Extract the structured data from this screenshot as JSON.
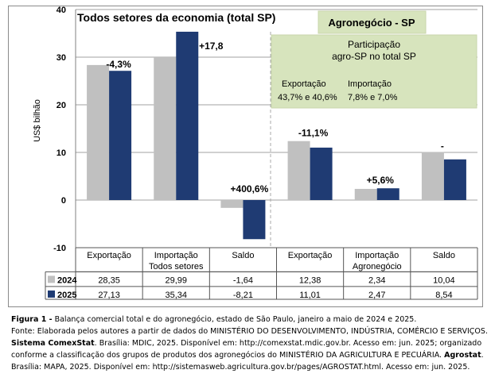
{
  "chart_data": {
    "type": "bar",
    "title": "Todos setores da economia (total SP)",
    "ylabel": "US$ bilhão",
    "ylim": [
      -10,
      40
    ],
    "yticks": [
      -10,
      0,
      10,
      20,
      30,
      40
    ],
    "grid": true,
    "categories": [
      "Exportação",
      "Importação",
      "Saldo",
      "Exportação",
      "Importação",
      "Saldo"
    ],
    "groups": [
      {
        "label": "Todos setores",
        "categories": [
          0,
          1,
          2
        ]
      },
      {
        "label": "Agronegócio",
        "categories": [
          3,
          4,
          5
        ]
      }
    ],
    "series": [
      {
        "name": "2024",
        "color": "#c0c0c0",
        "values": [
          28.35,
          29.99,
          -1.64,
          12.38,
          2.34,
          10.04
        ],
        "labels": [
          "28,35",
          "29,99",
          "-1,64",
          "12,38",
          "2,34",
          "10,04"
        ]
      },
      {
        "name": "2025",
        "color": "#1f3b73",
        "values": [
          27.13,
          35.34,
          -8.21,
          11.01,
          2.47,
          8.54
        ],
        "labels": [
          "27,13",
          "35,34",
          "-8,21",
          "11,01",
          "2,47",
          "8,54"
        ]
      }
    ],
    "annotations": [
      "-4,3%",
      "+17,8",
      "+400,6%",
      "-11,1%",
      "+5,6%",
      "-"
    ],
    "agro_title": "Agronegócio - SP",
    "participation": {
      "title_line1": "Participação",
      "title_line2": "agro-SP no total SP",
      "col1_label": "Exportação",
      "col1_value": "43,7% e 40,6%",
      "col2_label": "Importação",
      "col2_value": "7,8% e 7,0%"
    }
  },
  "caption": {
    "line1_bold": "Figura 1 -",
    "line1": " Balança comercial total e do agronegócio, estado de São Paulo, janeiro a maio de 2024 e 2025.",
    "line2": "Fonte: Elaborada pelos autores a partir de dados do MINISTÉRIO DO DESENVOLVIMENTO, INDÚSTRIA, COMÉRCIO E SERVIÇOS.",
    "line3_bold": "Sistema ComexStat",
    "line3": ". Brasília: MDIC, 2025. Disponível em: http://comexstat.mdic.gov.br. Acesso em: jun. 2025; organizado",
    "line4": "conforme a classificação dos grupos de produtos dos agronegócios do MINISTÉRIO DA AGRICULTURA E PECUÁRIA.",
    "line4_bold": "Agrostat",
    "line4_end": ".",
    "line5": "Brasília: MAPA, 2025. Disponível em: http://sistemasweb.agricultura.gov.br/pages/AGROSTAT.html. Acesso em: jun. 2025."
  }
}
